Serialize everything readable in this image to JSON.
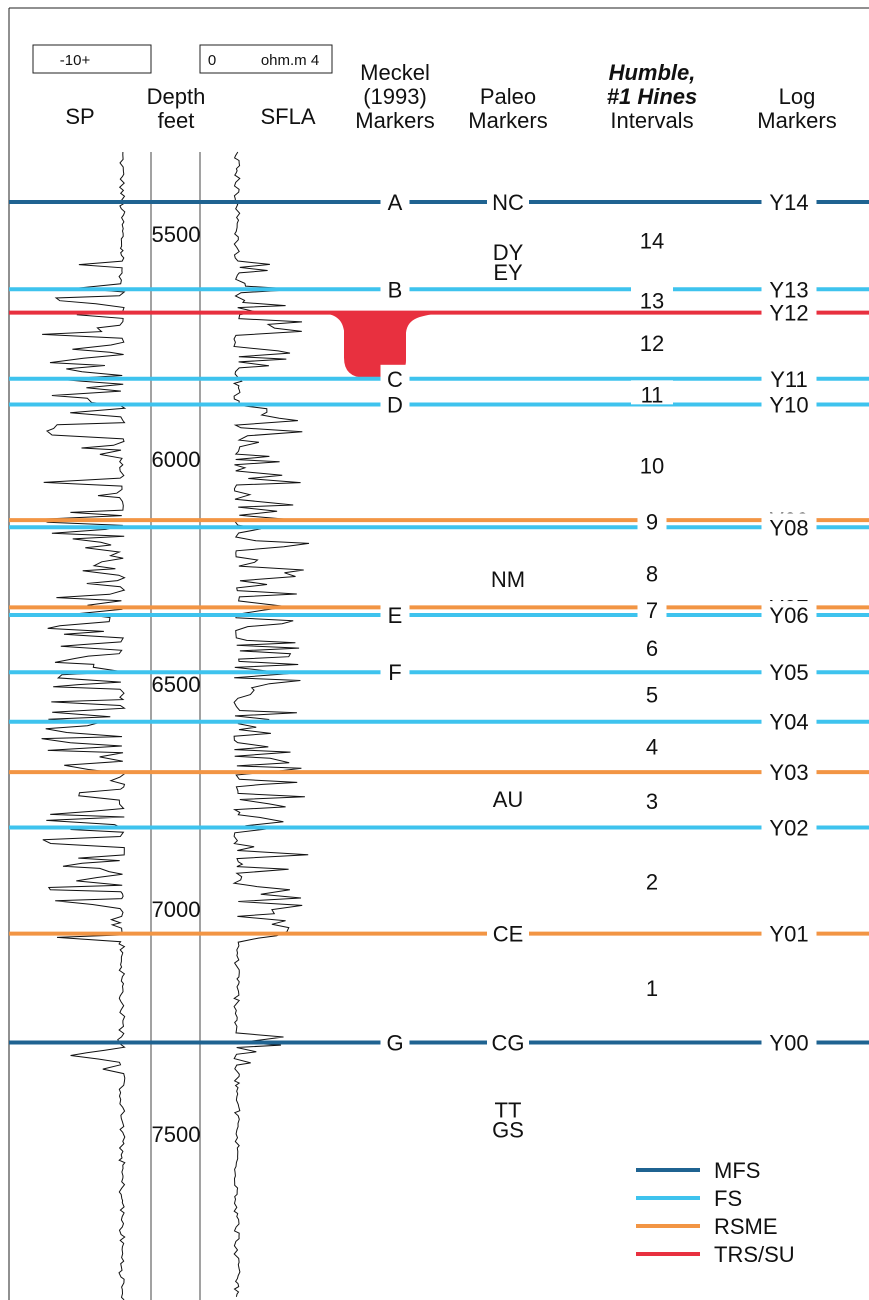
{
  "headers": {
    "sp_scale": "-10+",
    "sfla_scale_left": "0",
    "sfla_scale_right": "ohm.m 4",
    "sp": "SP",
    "depth_line1": "Depth",
    "depth_line2": "feet",
    "sfla": "SFLA",
    "meckel_line1": "Meckel",
    "meckel_line2": "(1993)",
    "meckel_line3": "Markers",
    "paleo_line1": "Paleo",
    "paleo_line2": "Markers",
    "humble_line1": "Humble,",
    "humble_line2": "#1 Hines",
    "humble_line3": "Intervals",
    "log_line1": "Log",
    "log_line2": "Markers"
  },
  "colors": {
    "MFS": "#1f6391",
    "FS": "#3ec3ee",
    "RSME": "#f29544",
    "TRS/SU": "#e8303f"
  },
  "depth_ticks": [
    {
      "depth": 5500,
      "label": "5500"
    },
    {
      "depth": 6000,
      "label": "6000"
    },
    {
      "depth": 6500,
      "label": "6500"
    },
    {
      "depth": 7000,
      "label": "7000"
    },
    {
      "depth": 7500,
      "label": "7500"
    }
  ],
  "surfaces": [
    {
      "type": "MFS",
      "depth": 5415,
      "meckel": "A",
      "paleo": "NC",
      "log": "Y14"
    },
    {
      "type": "FS",
      "depth": 5609,
      "meckel": "B",
      "paleo": "",
      "log": "Y13"
    },
    {
      "type": "TRS/SU",
      "depth": 5661,
      "meckel": "",
      "paleo": "",
      "log": "Y12"
    },
    {
      "type": "FS",
      "depth": 5808,
      "meckel": "C",
      "paleo": "",
      "log": "Y11"
    },
    {
      "type": "FS",
      "depth": 5865,
      "meckel": "D",
      "paleo": "",
      "log": "Y10"
    },
    {
      "type": "RSME",
      "depth": 6122,
      "meckel": "",
      "paleo": "",
      "log": "Y09"
    },
    {
      "type": "FS",
      "depth": 6138,
      "meckel": "",
      "paleo": "",
      "log": "Y08"
    },
    {
      "type": "RSME",
      "depth": 6316,
      "meckel": "",
      "paleo": "",
      "log": "Y07"
    },
    {
      "type": "FS",
      "depth": 6333,
      "meckel": "E",
      "paleo": "",
      "log": "Y06"
    },
    {
      "type": "FS",
      "depth": 6460,
      "meckel": "F",
      "paleo": "",
      "log": "Y05"
    },
    {
      "type": "FS",
      "depth": 6570,
      "meckel": "",
      "paleo": "",
      "log": "Y04"
    },
    {
      "type": "RSME",
      "depth": 6682,
      "meckel": "",
      "paleo": "",
      "log": "Y03"
    },
    {
      "type": "FS",
      "depth": 6805,
      "meckel": "",
      "paleo": "",
      "log": "Y02"
    },
    {
      "type": "RSME",
      "depth": 7041,
      "meckel": "",
      "paleo": "CE",
      "log": "Y01"
    },
    {
      "type": "MFS",
      "depth": 7283,
      "meckel": "G",
      "paleo": "CG",
      "log": "Y00"
    }
  ],
  "intervals": [
    {
      "label": "14",
      "depth": 5505
    },
    {
      "label": "13",
      "depth": 5638
    },
    {
      "label": "12",
      "depth": 5733
    },
    {
      "label": "11",
      "depth": 5847
    },
    {
      "label": "10",
      "depth": 6005
    },
    {
      "label": "9",
      "depth": 6130
    },
    {
      "label": "8",
      "depth": 6245
    },
    {
      "label": "7",
      "depth": 6326
    },
    {
      "label": "6",
      "depth": 6411
    },
    {
      "label": "5",
      "depth": 6514
    },
    {
      "label": "4",
      "depth": 6630
    },
    {
      "label": "3",
      "depth": 6751
    },
    {
      "label": "2",
      "depth": 6930
    },
    {
      "label": "1",
      "depth": 7166
    }
  ],
  "paleo_labels": [
    {
      "label": "DY",
      "depth": 5535
    },
    {
      "label": "EY",
      "depth": 5580
    },
    {
      "label": "NM",
      "depth": 6262
    },
    {
      "label": "AU",
      "depth": 6751
    },
    {
      "label": "TT",
      "depth": 7442
    },
    {
      "label": "GS",
      "depth": 7485
    }
  ],
  "legend": [
    {
      "label": "MFS",
      "type": "MFS"
    },
    {
      "label": "FS",
      "type": "FS"
    },
    {
      "label": "RSME",
      "type": "RSME"
    },
    {
      "label": "TRS/SU",
      "type": "TRS/SU"
    }
  ]
}
